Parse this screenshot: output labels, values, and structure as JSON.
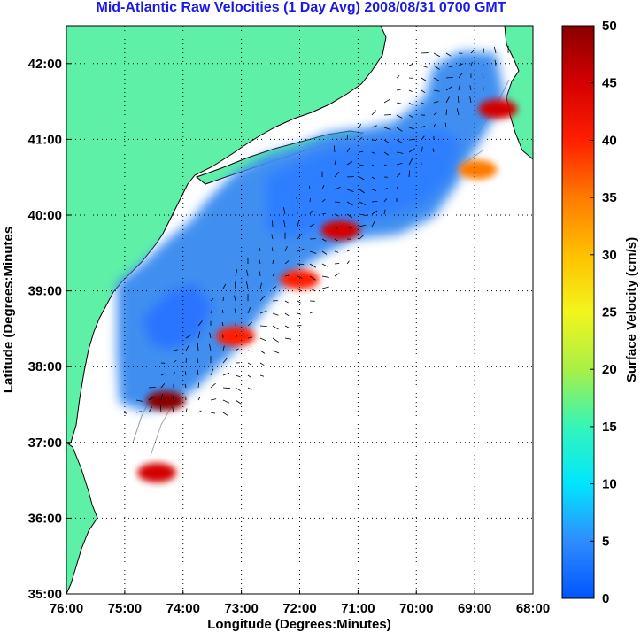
{
  "chart_data": {
    "type": "heatmap",
    "title": "Mid-Atlantic Raw Velocities (1 Day Avg) 2008/08/31 0700 GMT",
    "xlabel": "Longitude (Degrees:Minutes)",
    "ylabel": "Latitude (Degrees:Minutes",
    "x_ticks": [
      "76:00",
      "75:00",
      "74:00",
      "73:00",
      "72:00",
      "71:00",
      "70:00",
      "69:00",
      "68:00"
    ],
    "x_tick_values": [
      -76,
      -75,
      -74,
      -73,
      -72,
      -71,
      -70,
      -69,
      -68
    ],
    "y_ticks": [
      "35:00",
      "36:00",
      "37:00",
      "38:00",
      "39:00",
      "40:00",
      "41:00",
      "42:00"
    ],
    "y_tick_values": [
      35,
      36,
      37,
      38,
      39,
      40,
      41,
      42
    ],
    "xlim": [
      -76,
      -68
    ],
    "ylim": [
      35,
      42.5
    ],
    "grid": true,
    "colorbar": {
      "label": "Surface Velocity (cm/s)",
      "ticks": [
        "0",
        "5",
        "10",
        "15",
        "20",
        "25",
        "30",
        "35",
        "40",
        "45",
        "50"
      ],
      "range": [
        0,
        50
      ],
      "colormap": "jet"
    },
    "land_color": "#5ff0a8",
    "hotspots": [
      {
        "lon": -74.3,
        "lat": 37.55,
        "speed": 48
      },
      {
        "lon": -73.1,
        "lat": 38.4,
        "speed": 38
      },
      {
        "lon": -72.0,
        "lat": 39.15,
        "speed": 42
      },
      {
        "lon": -71.3,
        "lat": 39.8,
        "speed": 45
      },
      {
        "lon": -68.6,
        "lat": 41.4,
        "speed": 47
      },
      {
        "lon": -74.45,
        "lat": 36.6,
        "speed": 46
      },
      {
        "lon": -68.95,
        "lat": 40.6,
        "speed": 33
      }
    ]
  }
}
